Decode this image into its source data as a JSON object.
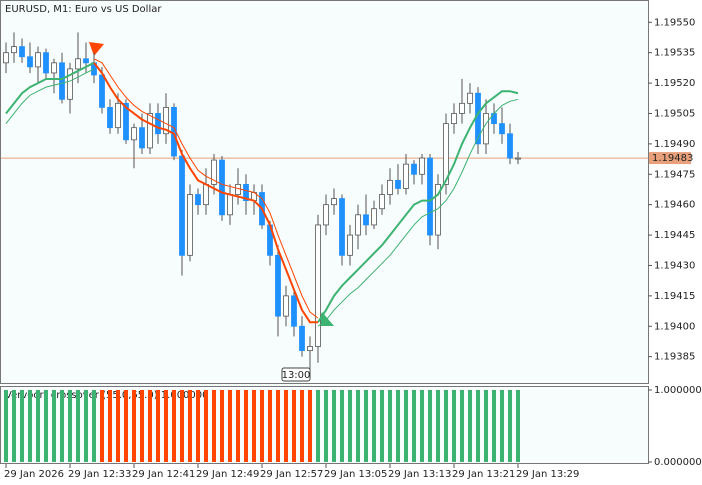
{
  "chart_data": {
    "type": "candlestick",
    "title": "EURUSD, M1:  Euro vs US Dollar",
    "ylim": [
      1.19372,
      1.19561
    ],
    "yticks": [
      {
        "value": 1.1955,
        "label": "1.19550"
      },
      1.19535,
      {
        "value": 1.1952,
        "label": "1.19520"
      },
      1.19505,
      {
        "value": 1.1949,
        "label": "1.19490"
      },
      1.19475,
      {
        "value": 1.1946,
        "label": "1.19460"
      },
      1.19445,
      {
        "value": 1.1943,
        "label": "1.19430"
      },
      1.19415,
      {
        "value": 1.194,
        "label": "1.19400"
      },
      1.19385
    ],
    "current_price": 1.19483,
    "current_price_color": "#e8a07a",
    "bull_color": "#ffffff",
    "bear_color": "#1e90ff",
    "period_label": "13:00",
    "categories": [
      "29 Jan 2026",
      null,
      null,
      null,
      null,
      null,
      null,
      null,
      "29 Jan 12:33",
      null,
      null,
      null,
      null,
      null,
      null,
      null,
      "29 Jan 12:41",
      null,
      null,
      null,
      null,
      null,
      null,
      null,
      "29 Jan 12:49",
      null,
      null,
      null,
      null,
      null,
      null,
      null,
      "29 Jan 12:57",
      null,
      null,
      null,
      null,
      null,
      null,
      null,
      "29 Jan 13:05",
      null,
      null,
      null,
      null,
      null,
      null,
      null,
      "29 Jan 13:13",
      null,
      null,
      null,
      null,
      null,
      null,
      null,
      "29 Jan 13:21",
      null,
      null,
      null,
      null,
      null,
      null,
      null,
      "29 Jan 13:29"
    ],
    "open": [
      1.1953,
      1.19535,
      1.19538,
      1.19533,
      1.19528,
      1.19535,
      1.19525,
      1.1953,
      1.19512,
      1.19527,
      1.19532,
      1.1953,
      1.19524,
      1.19508,
      1.19498,
      1.1951,
      1.19492,
      1.19498,
      1.19488,
      1.19505,
      1.19495,
      1.19508,
      1.19484,
      1.19435,
      1.19465,
      1.1946,
      1.1947,
      1.19482,
      1.19455,
      1.19465,
      1.1947,
      1.19462,
      1.19466,
      1.1945,
      1.19435,
      1.19405,
      1.19415,
      1.194,
      1.19388,
      1.1939,
      1.1945,
      1.1946,
      1.19463,
      1.19435,
      1.19445,
      1.19455,
      1.1945,
      1.19458,
      1.19465,
      1.19472,
      1.19468,
      1.1948,
      1.19475,
      1.19483,
      1.19445,
      1.1947,
      1.195,
      1.19505,
      1.1951,
      1.19515,
      1.1949,
      1.19505,
      1.195,
      1.19495,
      1.19483
    ],
    "high": [
      1.1954,
      1.19545,
      1.19542,
      1.1954,
      1.19538,
      1.19537,
      1.19532,
      1.19535,
      1.1953,
      1.19545,
      1.1954,
      1.19535,
      1.19528,
      1.19512,
      1.19515,
      1.19512,
      1.195,
      1.19505,
      1.1951,
      1.1951,
      1.19515,
      1.1951,
      1.19487,
      1.1947,
      1.19468,
      1.19478,
      1.19485,
      1.19484,
      1.1947,
      1.19478,
      1.19475,
      1.1947,
      1.1947,
      1.19452,
      1.1944,
      1.1942,
      1.19418,
      1.19405,
      1.19395,
      1.19455,
      1.19465,
      1.19468,
      1.19465,
      1.1945,
      1.1946,
      1.19465,
      1.19462,
      1.1947,
      1.19478,
      1.1948,
      1.19485,
      1.19482,
      1.19485,
      1.19485,
      1.19475,
      1.19505,
      1.1951,
      1.19522,
      1.1952,
      1.19518,
      1.19512,
      1.1951,
      1.19508,
      1.195,
      1.19486
    ],
    "low": [
      1.19525,
      1.1953,
      1.1953,
      1.19525,
      1.1952,
      1.19522,
      1.19515,
      1.1951,
      1.19505,
      1.1952,
      1.19525,
      1.1952,
      1.19505,
      1.19495,
      1.19495,
      1.1949,
      1.19478,
      1.19485,
      1.19485,
      1.1949,
      1.1949,
      1.19482,
      1.19425,
      1.19432,
      1.19455,
      1.19455,
      1.19465,
      1.19452,
      1.1945,
      1.1946,
      1.19455,
      1.19455,
      1.19448,
      1.1943,
      1.19395,
      1.194,
      1.19395,
      1.19385,
      1.19378,
      1.19382,
      1.19445,
      1.19455,
      1.1943,
      1.1943,
      1.19438,
      1.19445,
      1.19448,
      1.19455,
      1.1946,
      1.19465,
      1.19465,
      1.1947,
      1.1947,
      1.1944,
      1.19438,
      1.19465,
      1.19495,
      1.195,
      1.19505,
      1.19485,
      1.19485,
      1.19495,
      1.1949,
      1.1948,
      1.1948
    ],
    "close": [
      1.19535,
      1.19538,
      1.19533,
      1.19528,
      1.19535,
      1.19525,
      1.1953,
      1.19512,
      1.19527,
      1.19532,
      1.1953,
      1.19524,
      1.19508,
      1.19498,
      1.1951,
      1.19492,
      1.19498,
      1.19488,
      1.19505,
      1.19495,
      1.19508,
      1.19484,
      1.19435,
      1.19465,
      1.1946,
      1.1947,
      1.19482,
      1.19455,
      1.19465,
      1.1947,
      1.19462,
      1.19466,
      1.1945,
      1.19435,
      1.19405,
      1.19415,
      1.194,
      1.19388,
      1.1939,
      1.1945,
      1.1946,
      1.19463,
      1.19435,
      1.19445,
      1.19455,
      1.1945,
      1.19458,
      1.19465,
      1.19472,
      1.19468,
      1.1948,
      1.19475,
      1.19483,
      1.19445,
      1.1947,
      1.195,
      1.19505,
      1.1951,
      1.19515,
      1.1949,
      1.19505,
      1.195,
      1.19495,
      1.19483,
      1.19483
    ],
    "series": [
      {
        "color": "#3cb371",
        "width": 2,
        "values": [
          1.19505,
          1.1951,
          1.19515,
          1.19518,
          1.1952,
          1.19522,
          1.19522,
          1.19522,
          1.19524,
          1.19526,
          1.19528,
          1.1953,
          null,
          null,
          null,
          null,
          null,
          null,
          null,
          null,
          null,
          null,
          null,
          null,
          null,
          null,
          null,
          null,
          null,
          null,
          null,
          null,
          null,
          null,
          null,
          null,
          null,
          null,
          null,
          1.19402,
          1.19408,
          1.19415,
          1.1942,
          1.19424,
          1.19428,
          1.19432,
          1.19436,
          1.1944,
          1.19445,
          1.1945,
          1.19455,
          1.1946,
          1.19462,
          1.19462,
          1.19465,
          1.19472,
          1.1948,
          1.1949,
          1.19498,
          1.19505,
          1.1951,
          1.19513,
          1.19516,
          1.19516,
          1.19515
        ]
      },
      {
        "color": "#3cb371",
        "width": 1,
        "values": [
          1.195,
          1.19505,
          1.1951,
          1.19514,
          1.19516,
          1.19518,
          1.19519,
          1.1952,
          1.19521,
          1.19523,
          1.19525,
          1.19527,
          null,
          null,
          null,
          null,
          null,
          null,
          null,
          null,
          null,
          null,
          null,
          null,
          null,
          null,
          null,
          null,
          null,
          null,
          null,
          null,
          null,
          null,
          null,
          null,
          null,
          null,
          null,
          1.194,
          1.19403,
          1.19408,
          1.19412,
          1.19416,
          1.19419,
          1.19423,
          1.19427,
          1.19431,
          1.19435,
          1.1944,
          1.19445,
          1.1945,
          1.19454,
          1.19456,
          1.19458,
          1.19462,
          1.19468,
          1.19476,
          1.19485,
          1.19493,
          1.195,
          1.19505,
          1.19509,
          1.19511,
          1.19512
        ]
      },
      {
        "color": "#ff4500",
        "width": 2,
        "values": [
          null,
          null,
          null,
          null,
          null,
          null,
          null,
          null,
          null,
          null,
          null,
          1.1953,
          1.19525,
          1.19518,
          1.19512,
          1.19508,
          1.19505,
          1.19502,
          1.195,
          1.19498,
          1.19497,
          1.19495,
          1.19485,
          1.19478,
          1.19472,
          1.1947,
          1.19468,
          1.19466,
          1.19465,
          1.19464,
          1.19463,
          1.19462,
          1.19458,
          1.1945,
          1.19438,
          1.19428,
          1.19418,
          1.19408,
          1.19402,
          1.19402,
          null,
          null,
          null,
          null,
          null,
          null,
          null,
          null,
          null,
          null,
          null,
          null,
          null,
          null,
          null,
          null,
          null,
          null,
          null,
          null,
          null,
          null,
          null,
          null,
          null
        ]
      },
      {
        "color": "#ff4500",
        "width": 1,
        "values": [
          null,
          null,
          null,
          null,
          null,
          null,
          null,
          null,
          null,
          null,
          null,
          1.19532,
          1.1953,
          1.19524,
          1.19518,
          1.19513,
          1.19509,
          1.19506,
          1.19504,
          1.19502,
          1.195,
          1.19498,
          1.1949,
          1.19483,
          1.19477,
          1.19474,
          1.19472,
          1.1947,
          1.19469,
          1.19468,
          1.19467,
          1.19466,
          1.19463,
          1.19456,
          1.19445,
          1.19435,
          1.19425,
          1.19415,
          1.19407,
          1.19404,
          null,
          null,
          null,
          null,
          null,
          null,
          null,
          null,
          null,
          null,
          null,
          null,
          null,
          null,
          null,
          null,
          null,
          null,
          null,
          null,
          null,
          null,
          null,
          null,
          null
        ]
      }
    ],
    "indicator": {
      "type": "histogram",
      "title": "Vervoort crossover (55.0,55.0) 1.000000",
      "ylim": [
        0,
        1
      ],
      "yticks": [
        {
          "value": 1,
          "label": "1.000000"
        },
        {
          "value": 0,
          "label": "0.000000"
        }
      ],
      "series": [
        {
          "color": "#3cb371",
          "values": [
            1,
            1,
            1,
            1,
            1,
            1,
            1,
            1,
            1,
            1,
            1,
            1,
            null,
            null,
            null,
            null,
            null,
            null,
            null,
            null,
            null,
            null,
            null,
            null,
            null,
            null,
            null,
            null,
            null,
            null,
            null,
            null,
            null,
            null,
            null,
            null,
            null,
            null,
            null,
            1,
            1,
            1,
            1,
            1,
            1,
            1,
            1,
            1,
            1,
            1,
            1,
            1,
            1,
            1,
            1,
            1,
            1,
            1,
            1,
            1,
            1,
            1,
            1,
            1,
            1
          ]
        },
        {
          "color": "#ff4500",
          "values": [
            null,
            null,
            null,
            null,
            null,
            null,
            null,
            null,
            null,
            null,
            null,
            null,
            1,
            1,
            1,
            1,
            1,
            1,
            1,
            1,
            1,
            1,
            1,
            1,
            1,
            1,
            1,
            1,
            1,
            1,
            1,
            1,
            1,
            1,
            1,
            1,
            1,
            1,
            1,
            null,
            null,
            null,
            null,
            null,
            null,
            null,
            null,
            null,
            null,
            null,
            null,
            null,
            null,
            null,
            null,
            null,
            null,
            null,
            null,
            null,
            null,
            null,
            null,
            null,
            null
          ]
        }
      ]
    }
  }
}
